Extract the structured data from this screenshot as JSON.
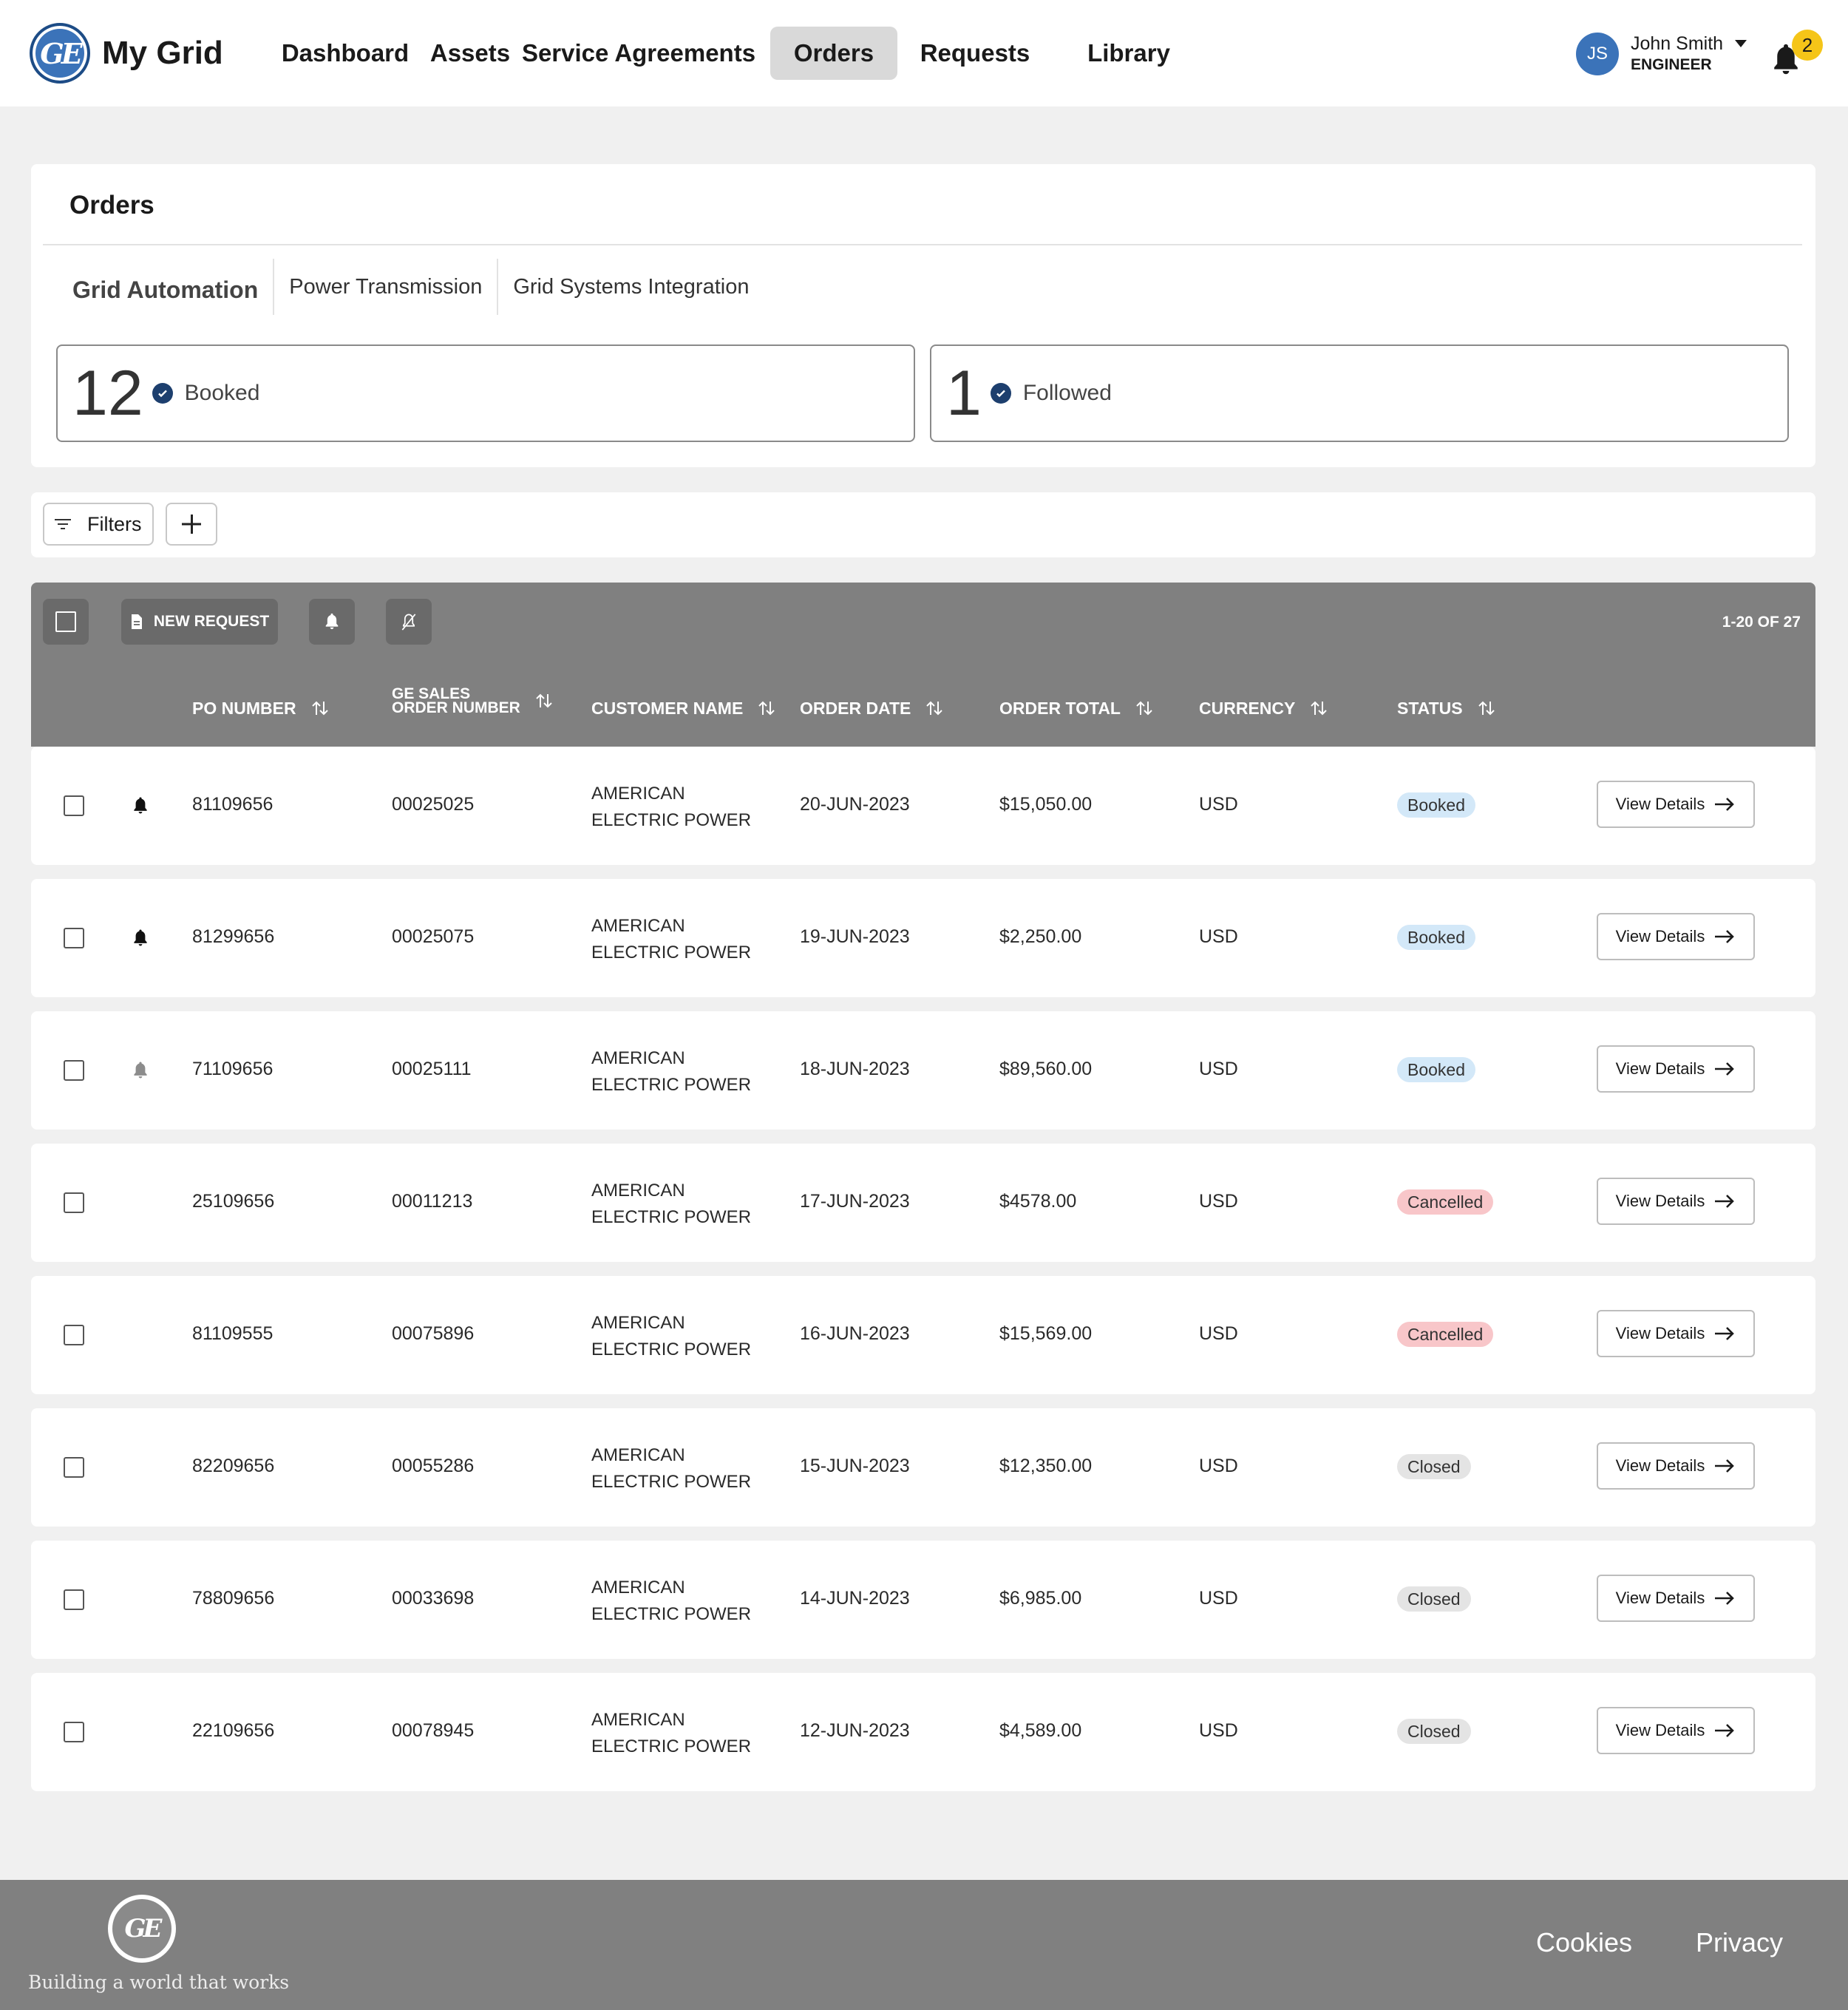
{
  "header": {
    "logo_text": "GE",
    "app_title": "My Grid",
    "nav": [
      {
        "label": "Dashboard",
        "active": false
      },
      {
        "label": "Assets",
        "active": false
      },
      {
        "label": "Service Agreements",
        "active": false
      },
      {
        "label": "Orders",
        "active": true
      },
      {
        "label": "Requests",
        "active": false
      },
      {
        "label": "Library",
        "active": false
      }
    ],
    "user": {
      "initials": "JS",
      "name": "John Smith",
      "role": "ENGINEER"
    },
    "notifications_count": "2"
  },
  "orders": {
    "title": "Orders",
    "tabs": [
      {
        "label": "Grid Automation",
        "active": true
      },
      {
        "label": "Power Transmission",
        "active": false
      },
      {
        "label": "Grid Systems Integration",
        "active": false
      }
    ],
    "stats": [
      {
        "value": "12",
        "label": "Booked"
      },
      {
        "value": "1",
        "label": "Followed"
      }
    ]
  },
  "filters": {
    "label": "Filters"
  },
  "table": {
    "new_request_label": "NEW REQUEST",
    "range_label": "1-20 OF 27",
    "columns": {
      "po_number": "PO NUMBER",
      "ge_sales_line1": "GE SALES",
      "ge_sales_line2": "ORDER NUMBER",
      "customer_name": "CUSTOMER NAME",
      "order_date": "ORDER DATE",
      "order_total": "ORDER TOTAL",
      "currency": "CURRENCY",
      "status": "STATUS"
    },
    "view_label": "View Details",
    "rows": [
      {
        "po": "81109656",
        "so": "00025025",
        "cust1": "AMERICAN",
        "cust2": "ELECTRIC POWER",
        "date": "20-JUN-2023",
        "total": "$15,050.00",
        "currency": "USD",
        "status": "Booked",
        "status_type": "booked",
        "bell": "dark"
      },
      {
        "po": "81299656",
        "so": "00025075",
        "cust1": "AMERICAN",
        "cust2": "ELECTRIC POWER",
        "date": "19-JUN-2023",
        "total": "$2,250.00",
        "currency": "USD",
        "status": "Booked",
        "status_type": "booked",
        "bell": "dark"
      },
      {
        "po": "71109656",
        "so": "00025111",
        "cust1": "AMERICAN",
        "cust2": "ELECTRIC POWER",
        "date": "18-JUN-2023",
        "total": "$89,560.00",
        "currency": "USD",
        "status": "Booked",
        "status_type": "booked",
        "bell": "light"
      },
      {
        "po": "25109656",
        "so": "00011213",
        "cust1": "AMERICAN",
        "cust2": "ELECTRIC POWER",
        "date": "17-JUN-2023",
        "total": "$4578.00",
        "currency": "USD",
        "status": "Cancelled",
        "status_type": "cancelled",
        "bell": "none"
      },
      {
        "po": "81109555",
        "so": "00075896",
        "cust1": "AMERICAN",
        "cust2": "ELECTRIC POWER",
        "date": "16-JUN-2023",
        "total": "$15,569.00",
        "currency": "USD",
        "status": "Cancelled",
        "status_type": "cancelled",
        "bell": "none"
      },
      {
        "po": "82209656",
        "so": "00055286",
        "cust1": "AMERICAN",
        "cust2": "ELECTRIC POWER",
        "date": "15-JUN-2023",
        "total": "$12,350.00",
        "currency": "USD",
        "status": "Closed",
        "status_type": "closed",
        "bell": "none"
      },
      {
        "po": "78809656",
        "so": "00033698",
        "cust1": "AMERICAN",
        "cust2": "ELECTRIC POWER",
        "date": "14-JUN-2023",
        "total": "$6,985.00",
        "currency": "USD",
        "status": "Closed",
        "status_type": "closed",
        "bell": "none"
      },
      {
        "po": "22109656",
        "so": "00078945",
        "cust1": "AMERICAN",
        "cust2": "ELECTRIC POWER",
        "date": "12-JUN-2023",
        "total": "$4,589.00",
        "currency": "USD",
        "status": "Closed",
        "status_type": "closed",
        "bell": "none"
      }
    ]
  },
  "footer": {
    "tagline": "Building a world that works",
    "links": [
      "Cookies",
      "Privacy"
    ]
  },
  "colors": {
    "accent": "#3b73b9",
    "header_bar": "#808080",
    "badge": "#f5c518"
  },
  "icons": [
    "ge-logo-icon",
    "caret-down-icon",
    "bell-icon",
    "check-circle-icon",
    "filter-icon",
    "plus-icon",
    "checkbox-icon",
    "document-icon",
    "bell-off-icon",
    "sort-icon",
    "arrow-right-icon"
  ]
}
